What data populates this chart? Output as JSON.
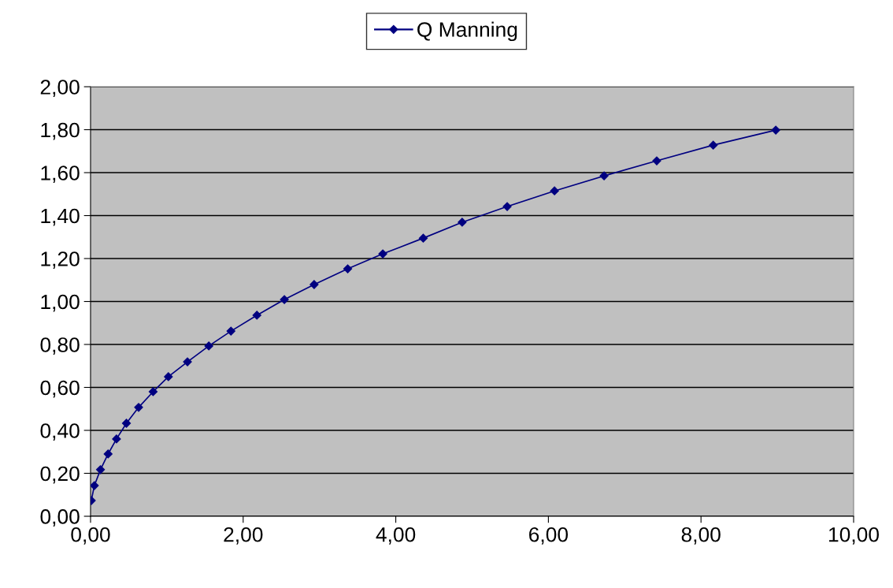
{
  "chart_data": {
    "type": "line",
    "x": [
      0.01,
      0.05,
      0.13,
      0.23,
      0.34,
      0.47,
      0.63,
      0.82,
      1.02,
      1.27,
      1.55,
      1.84,
      2.18,
      2.54,
      2.93,
      3.37,
      3.83,
      4.36,
      4.87,
      5.46,
      6.08,
      6.73,
      7.42,
      8.16,
      8.98
    ],
    "series": [
      {
        "name": "Q Manning",
        "color": "#000080",
        "values": [
          0.073,
          0.143,
          0.217,
          0.29,
          0.36,
          0.433,
          0.507,
          0.58,
          0.65,
          0.719,
          0.793,
          0.862,
          0.936,
          1.009,
          1.079,
          1.152,
          1.222,
          1.295,
          1.369,
          1.442,
          1.515,
          1.585,
          1.655,
          1.728,
          1.798
        ]
      }
    ],
    "xlim": [
      0,
      10
    ],
    "xticks": [
      {
        "value": 0,
        "label": "0,00"
      },
      {
        "value": 2,
        "label": "2,00"
      },
      {
        "value": 4,
        "label": "4,00"
      },
      {
        "value": 6,
        "label": "6,00"
      },
      {
        "value": 8,
        "label": "8,00"
      },
      {
        "value": 10,
        "label": "10,00"
      }
    ],
    "ylim": [
      0,
      2
    ],
    "yticks": [
      {
        "value": 0,
        "label": "0,00"
      },
      {
        "value": 0.2,
        "label": "0,20"
      },
      {
        "value": 0.4,
        "label": "0,40"
      },
      {
        "value": 0.6,
        "label": "0,60"
      },
      {
        "value": 0.8,
        "label": "0,80"
      },
      {
        "value": 1.0,
        "label": "1,00"
      },
      {
        "value": 1.2,
        "label": "1,20"
      },
      {
        "value": 1.4,
        "label": "1,40"
      },
      {
        "value": 1.6,
        "label": "1,60"
      },
      {
        "value": 1.8,
        "label": "1,80"
      },
      {
        "value": 2.0,
        "label": "2,00"
      }
    ],
    "grid": "y",
    "legend": "top",
    "marker": "diamond",
    "line_style": "solid"
  }
}
